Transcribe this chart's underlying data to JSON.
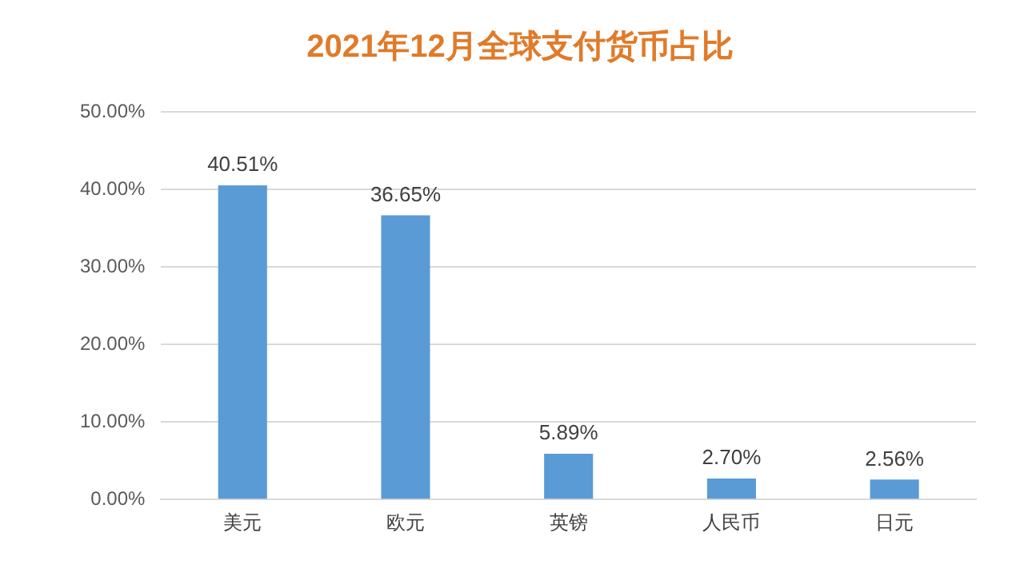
{
  "chart_data": {
    "type": "bar",
    "title": "2021年12月全球支付货币占比",
    "categories": [
      "美元",
      "欧元",
      "英镑",
      "人民币",
      "日元"
    ],
    "values": [
      40.51,
      36.65,
      5.89,
      2.7,
      2.56
    ],
    "value_labels": [
      "40.51%",
      "36.65%",
      "5.89%",
      "2.70%",
      "2.56%"
    ],
    "color": "#5b9bd5",
    "ylim": [
      0,
      50
    ],
    "yticks": [
      {
        "value": 0,
        "label": "0.00%"
      },
      {
        "value": 10,
        "label": "10.00%"
      },
      {
        "value": 20,
        "label": "20.00%"
      },
      {
        "value": 30,
        "label": "30.00%"
      },
      {
        "value": 40,
        "label": "40.00%"
      },
      {
        "value": 50,
        "label": "50.00%"
      }
    ],
    "grid": "y",
    "legend": false
  }
}
